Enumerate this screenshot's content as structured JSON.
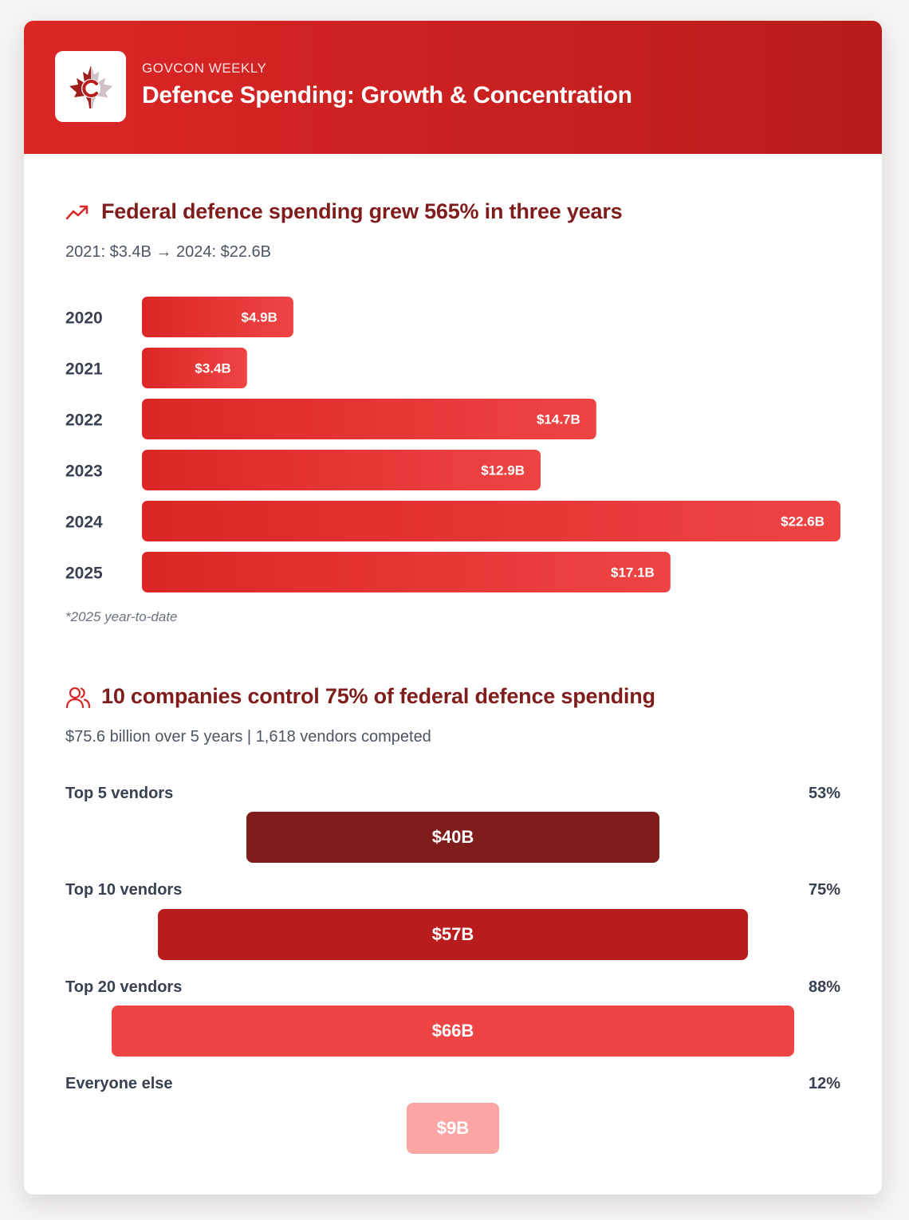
{
  "header": {
    "eyebrow": "GOVCON WEEKLY",
    "title": "Defence Spending: Growth & Concentration",
    "logo_icon": "maple-leaf-c-logo"
  },
  "growth": {
    "title": "Federal defence spending grew 565% in three years",
    "subtitle": "2021: $3.4B → 2024: $22.6B",
    "note": "*2025 year-to-date",
    "icon": "trending-up-icon"
  },
  "concentration": {
    "title": "10 companies control 75% of federal defence spending",
    "subtitle": "$75.6 billion over 5 years | 1,618 vendors competed",
    "icon": "users-icon",
    "rows": [
      {
        "label": "Top 5 vendors",
        "pct": "53%",
        "bar_label": "$40B",
        "value": 40,
        "color": "#7f1d1d"
      },
      {
        "label": "Top 10 vendors",
        "pct": "75%",
        "bar_label": "$57B",
        "value": 57,
        "color": "#b91c1c"
      },
      {
        "label": "Top 20 vendors",
        "pct": "88%",
        "bar_label": "$66B",
        "value": 66,
        "color": "#ef4444"
      },
      {
        "label": "Everyone else",
        "pct": "12%",
        "bar_label": "$9B",
        "value": 9,
        "color": "#fca5a5"
      }
    ]
  },
  "chart_data": [
    {
      "type": "bar",
      "orientation": "horizontal",
      "title": "Federal defence spending grew 565% in three years",
      "categories": [
        "2020",
        "2021",
        "2022",
        "2023",
        "2024",
        "2025"
      ],
      "values": [
        4.9,
        3.4,
        14.7,
        12.9,
        22.6,
        17.1
      ],
      "value_labels": [
        "$4.9B",
        "$3.4B",
        "$14.7B",
        "$12.9B",
        "$22.6B",
        "$17.1B"
      ],
      "unit": "$B",
      "xlim": [
        0,
        22.6
      ]
    },
    {
      "type": "bar",
      "orientation": "horizontal-centered",
      "title": "10 companies control 75% of federal defence spending",
      "categories": [
        "Top 5 vendors",
        "Top 10 vendors",
        "Top 20 vendors",
        "Everyone else"
      ],
      "values": [
        40,
        57,
        66,
        9
      ],
      "percentages": [
        53,
        75,
        88,
        12
      ],
      "unit": "$B"
    }
  ],
  "colors": {
    "brand_red": "#dc2626",
    "dark_red": "#7f1d1d",
    "bar_gradient_start": "#dc2626",
    "bar_gradient_end": "#ef4444"
  }
}
